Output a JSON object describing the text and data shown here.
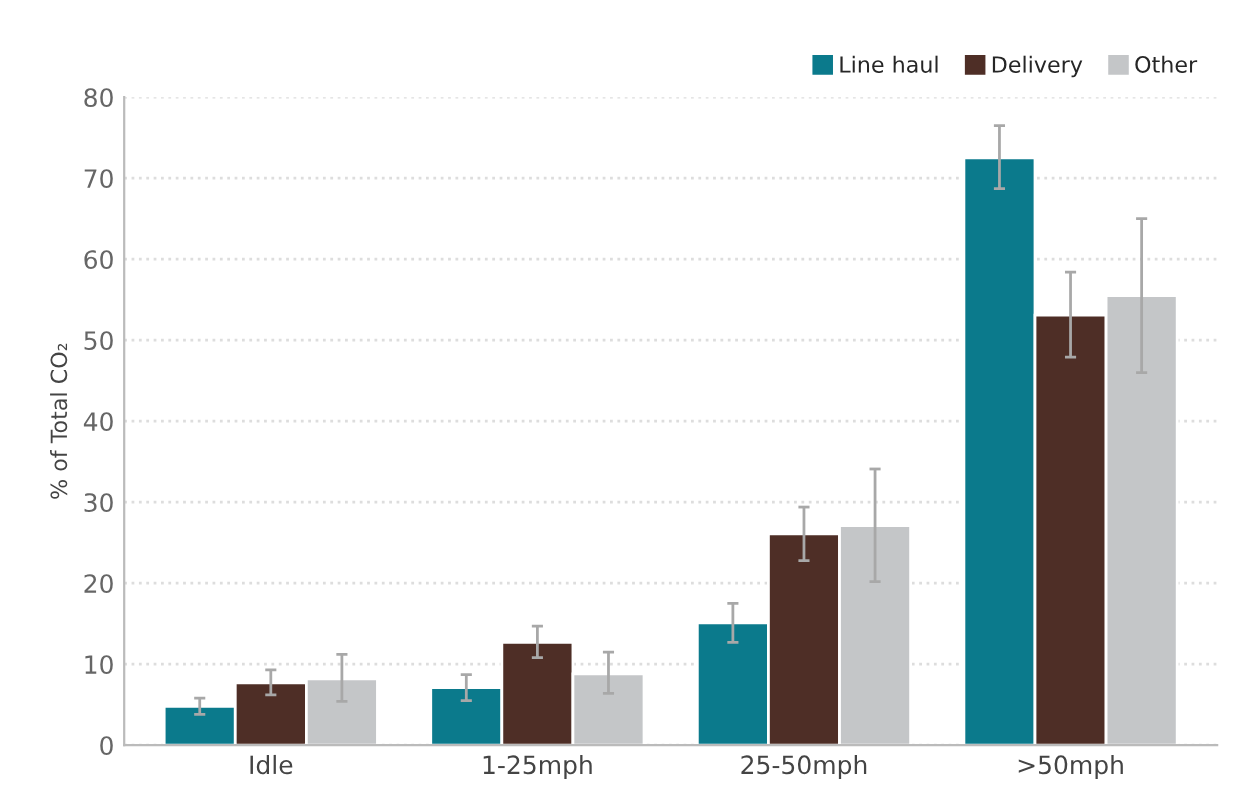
{
  "chart_data": {
    "type": "bar",
    "ylabel": "% of Total CO₂",
    "categories": [
      "Idle",
      "1-25mph",
      "25-50mph",
      ">50mph"
    ],
    "series": [
      {
        "name": "Line haul",
        "color": "#0b7a8c",
        "values": [
          4.8,
          7.1,
          15.1,
          72.5
        ],
        "errors": [
          [
            3.8,
            5.8
          ],
          [
            5.5,
            8.7
          ],
          [
            12.7,
            17.5
          ],
          [
            68.7,
            76.5
          ]
        ]
      },
      {
        "name": "Delivery",
        "color": "#4e2e26",
        "values": [
          7.7,
          12.7,
          26.1,
          53.1
        ],
        "errors": [
          [
            6.2,
            9.3
          ],
          [
            10.8,
            14.7
          ],
          [
            22.8,
            29.4
          ],
          [
            47.9,
            58.4
          ]
        ]
      },
      {
        "name": "Other",
        "color": "#c4c6c8",
        "values": [
          8.2,
          8.8,
          27.1,
          55.5
        ],
        "errors": [
          [
            5.4,
            11.2
          ],
          [
            6.4,
            11.5
          ],
          [
            20.2,
            34.1
          ],
          [
            46,
            65
          ]
        ]
      }
    ],
    "ylim": [
      0,
      80
    ],
    "yticks": [
      0,
      10,
      20,
      30,
      40,
      50,
      60,
      70,
      80
    ],
    "grid": "y",
    "legend": "top right"
  }
}
